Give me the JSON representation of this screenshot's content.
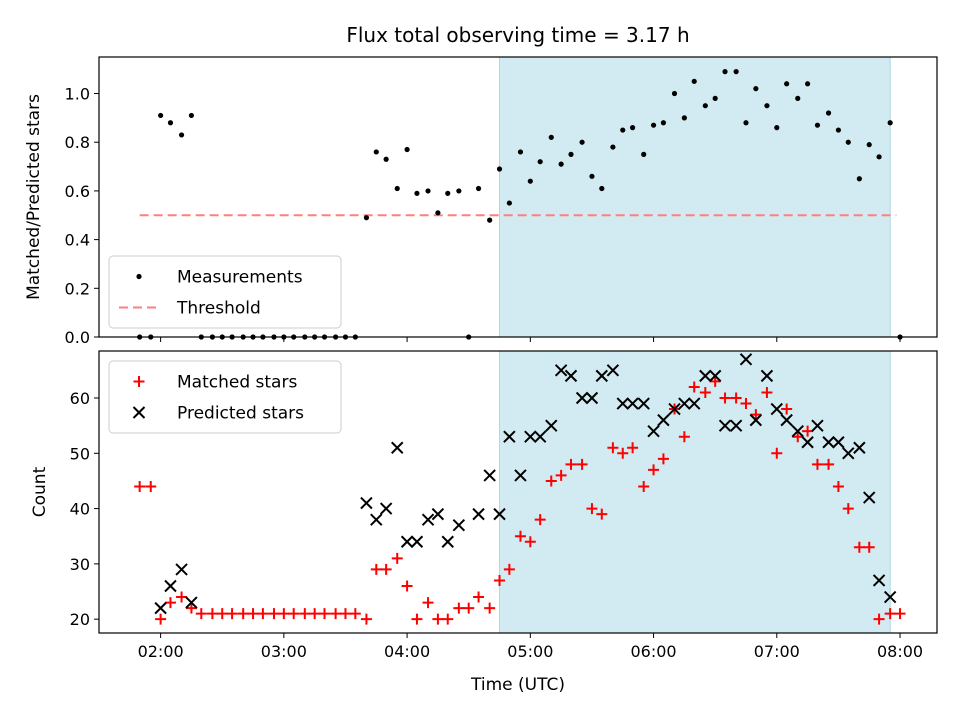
{
  "chart_data": {
    "title": "Flux total observing time = 3.17 h",
    "shaded_region_hours": [
      4.75,
      7.92
    ],
    "shade_color": "#add8e6",
    "x_axis": {
      "label": "Time (UTC)",
      "range_hours": [
        1.5,
        8.3
      ],
      "tick_values_hours": [
        2,
        3,
        4,
        5,
        6,
        7,
        8
      ],
      "tick_labels": [
        "02:00",
        "03:00",
        "04:00",
        "05:00",
        "06:00",
        "07:00",
        "08:00"
      ]
    },
    "panels": [
      {
        "type": "scatter",
        "ylabel": "Matched/Predicted stars",
        "ylim": [
          0,
          1.15
        ],
        "yticks": [
          0.0,
          0.2,
          0.4,
          0.6,
          0.8,
          1.0
        ],
        "ytick_labels": [
          "0.0",
          "0.2",
          "0.4",
          "0.6",
          "0.8",
          "1.0"
        ],
        "legend_position": "lower-left",
        "threshold": {
          "name": "Threshold",
          "value": 0.5,
          "x_range": [
            1.83,
            7.97
          ],
          "color": "#ff7f7f"
        },
        "series": [
          {
            "name": "Measurements",
            "marker": "dot",
            "color": "#000000",
            "points": [
              [
                1.83,
                0.0
              ],
              [
                1.92,
                0.0
              ],
              [
                2.0,
                0.91
              ],
              [
                2.08,
                0.88
              ],
              [
                2.17,
                0.83
              ],
              [
                2.25,
                0.91
              ],
              [
                2.33,
                0.0
              ],
              [
                2.42,
                0.0
              ],
              [
                2.5,
                0.0
              ],
              [
                2.58,
                0.0
              ],
              [
                2.67,
                0.0
              ],
              [
                2.75,
                0.0
              ],
              [
                2.83,
                0.0
              ],
              [
                2.92,
                0.0
              ],
              [
                3.0,
                0.0
              ],
              [
                3.08,
                0.0
              ],
              [
                3.17,
                0.0
              ],
              [
                3.25,
                0.0
              ],
              [
                3.33,
                0.0
              ],
              [
                3.42,
                0.0
              ],
              [
                3.5,
                0.0
              ],
              [
                3.58,
                0.0
              ],
              [
                3.67,
                0.49
              ],
              [
                3.75,
                0.76
              ],
              [
                3.83,
                0.73
              ],
              [
                3.92,
                0.61
              ],
              [
                4.0,
                0.77
              ],
              [
                4.08,
                0.59
              ],
              [
                4.17,
                0.6
              ],
              [
                4.25,
                0.51
              ],
              [
                4.33,
                0.59
              ],
              [
                4.42,
                0.6
              ],
              [
                4.5,
                0.0
              ],
              [
                4.58,
                0.61
              ],
              [
                4.67,
                0.48
              ],
              [
                4.75,
                0.69
              ],
              [
                4.83,
                0.55
              ],
              [
                4.92,
                0.76
              ],
              [
                5.0,
                0.64
              ],
              [
                5.08,
                0.72
              ],
              [
                5.17,
                0.82
              ],
              [
                5.25,
                0.71
              ],
              [
                5.33,
                0.75
              ],
              [
                5.42,
                0.8
              ],
              [
                5.5,
                0.66
              ],
              [
                5.58,
                0.61
              ],
              [
                5.67,
                0.78
              ],
              [
                5.75,
                0.85
              ],
              [
                5.83,
                0.86
              ],
              [
                5.92,
                0.75
              ],
              [
                6.0,
                0.87
              ],
              [
                6.08,
                0.88
              ],
              [
                6.17,
                1.0
              ],
              [
                6.25,
                0.9
              ],
              [
                6.33,
                1.05
              ],
              [
                6.42,
                0.95
              ],
              [
                6.5,
                0.98
              ],
              [
                6.58,
                1.09
              ],
              [
                6.67,
                1.09
              ],
              [
                6.75,
                0.88
              ],
              [
                6.83,
                1.02
              ],
              [
                6.92,
                0.95
              ],
              [
                7.0,
                0.86
              ],
              [
                7.08,
                1.04
              ],
              [
                7.17,
                0.98
              ],
              [
                7.25,
                1.04
              ],
              [
                7.33,
                0.87
              ],
              [
                7.42,
                0.92
              ],
              [
                7.5,
                0.85
              ],
              [
                7.58,
                0.8
              ],
              [
                7.67,
                0.65
              ],
              [
                7.75,
                0.79
              ],
              [
                7.83,
                0.74
              ],
              [
                7.92,
                0.88
              ],
              [
                8.0,
                0.0
              ]
            ]
          }
        ]
      },
      {
        "type": "scatter",
        "ylabel": "Count",
        "ylim": [
          17.5,
          68.5
        ],
        "yticks": [
          20,
          30,
          40,
          50,
          60
        ],
        "ytick_labels": [
          "20",
          "30",
          "40",
          "50",
          "60"
        ],
        "legend_position": "upper-left",
        "series": [
          {
            "name": "Matched stars",
            "marker": "plus",
            "color": "#ff0000",
            "points": [
              [
                1.83,
                44
              ],
              [
                1.92,
                44
              ],
              [
                2.0,
                20
              ],
              [
                2.08,
                23
              ],
              [
                2.17,
                24
              ],
              [
                2.25,
                22
              ],
              [
                2.33,
                21
              ],
              [
                2.42,
                21
              ],
              [
                2.5,
                21
              ],
              [
                2.58,
                21
              ],
              [
                2.67,
                21
              ],
              [
                2.75,
                21
              ],
              [
                2.83,
                21
              ],
              [
                2.92,
                21
              ],
              [
                3.0,
                21
              ],
              [
                3.08,
                21
              ],
              [
                3.17,
                21
              ],
              [
                3.25,
                21
              ],
              [
                3.33,
                21
              ],
              [
                3.42,
                21
              ],
              [
                3.5,
                21
              ],
              [
                3.58,
                21
              ],
              [
                3.67,
                20
              ],
              [
                3.75,
                29
              ],
              [
                3.83,
                29
              ],
              [
                3.92,
                31
              ],
              [
                4.0,
                26
              ],
              [
                4.08,
                20
              ],
              [
                4.17,
                23
              ],
              [
                4.25,
                20
              ],
              [
                4.33,
                20
              ],
              [
                4.42,
                22
              ],
              [
                4.5,
                22
              ],
              [
                4.58,
                24
              ],
              [
                4.67,
                22
              ],
              [
                4.75,
                27
              ],
              [
                4.83,
                29
              ],
              [
                4.92,
                35
              ],
              [
                5.0,
                34
              ],
              [
                5.08,
                38
              ],
              [
                5.17,
                45
              ],
              [
                5.25,
                46
              ],
              [
                5.33,
                48
              ],
              [
                5.42,
                48
              ],
              [
                5.5,
                40
              ],
              [
                5.58,
                39
              ],
              [
                5.67,
                51
              ],
              [
                5.75,
                50
              ],
              [
                5.83,
                51
              ],
              [
                5.92,
                44
              ],
              [
                6.0,
                47
              ],
              [
                6.08,
                49
              ],
              [
                6.17,
                58
              ],
              [
                6.25,
                53
              ],
              [
                6.33,
                62
              ],
              [
                6.42,
                61
              ],
              [
                6.5,
                63
              ],
              [
                6.58,
                60
              ],
              [
                6.67,
                60
              ],
              [
                6.75,
                59
              ],
              [
                6.83,
                57
              ],
              [
                6.92,
                61
              ],
              [
                7.0,
                50
              ],
              [
                7.08,
                58
              ],
              [
                7.17,
                53
              ],
              [
                7.25,
                54
              ],
              [
                7.33,
                48
              ],
              [
                7.42,
                48
              ],
              [
                7.5,
                44
              ],
              [
                7.58,
                40
              ],
              [
                7.67,
                33
              ],
              [
                7.75,
                33
              ],
              [
                7.83,
                20
              ],
              [
                7.92,
                21
              ],
              [
                8.0,
                21
              ]
            ]
          },
          {
            "name": "Predicted stars",
            "marker": "x",
            "color": "#000000",
            "points": [
              [
                2.0,
                22
              ],
              [
                2.08,
                26
              ],
              [
                2.17,
                29
              ],
              [
                2.25,
                23
              ],
              [
                3.67,
                41
              ],
              [
                3.75,
                38
              ],
              [
                3.83,
                40
              ],
              [
                3.92,
                51
              ],
              [
                4.0,
                34
              ],
              [
                4.08,
                34
              ],
              [
                4.17,
                38
              ],
              [
                4.25,
                39
              ],
              [
                4.33,
                34
              ],
              [
                4.42,
                37
              ],
              [
                4.58,
                39
              ],
              [
                4.67,
                46
              ],
              [
                4.75,
                39
              ],
              [
                4.83,
                53
              ],
              [
                4.92,
                46
              ],
              [
                5.0,
                53
              ],
              [
                5.08,
                53
              ],
              [
                5.17,
                55
              ],
              [
                5.25,
                65
              ],
              [
                5.33,
                64
              ],
              [
                5.42,
                60
              ],
              [
                5.5,
                60
              ],
              [
                5.58,
                64
              ],
              [
                5.67,
                65
              ],
              [
                5.75,
                59
              ],
              [
                5.83,
                59
              ],
              [
                5.92,
                59
              ],
              [
                6.0,
                54
              ],
              [
                6.08,
                56
              ],
              [
                6.17,
                58
              ],
              [
                6.25,
                59
              ],
              [
                6.33,
                59
              ],
              [
                6.42,
                64
              ],
              [
                6.5,
                64
              ],
              [
                6.58,
                55
              ],
              [
                6.67,
                55
              ],
              [
                6.75,
                67
              ],
              [
                6.83,
                56
              ],
              [
                6.92,
                64
              ],
              [
                7.0,
                58
              ],
              [
                7.08,
                56
              ],
              [
                7.17,
                54
              ],
              [
                7.25,
                52
              ],
              [
                7.33,
                55
              ],
              [
                7.42,
                52
              ],
              [
                7.5,
                52
              ],
              [
                7.58,
                50
              ],
              [
                7.67,
                51
              ],
              [
                7.75,
                42
              ],
              [
                7.83,
                27
              ],
              [
                7.92,
                24
              ]
            ]
          }
        ]
      }
    ]
  }
}
